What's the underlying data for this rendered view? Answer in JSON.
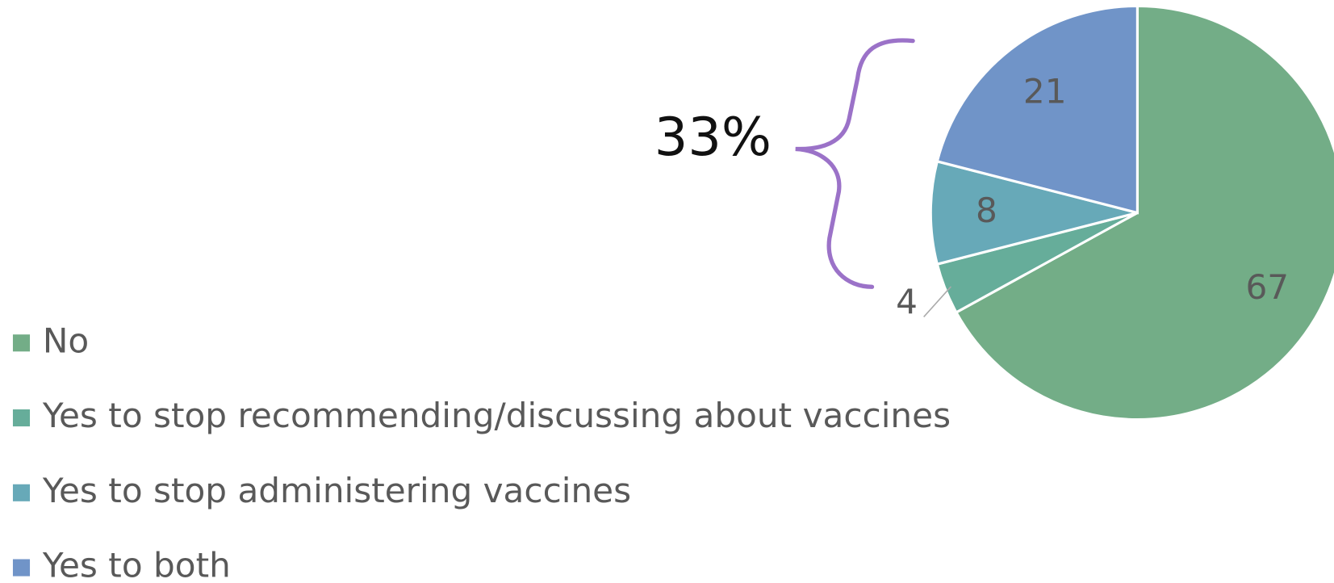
{
  "chart_data": {
    "type": "pie",
    "categories": [
      "No",
      "Yes to stop recommending/discussing about vaccines",
      "Yes to stop administering vaccines",
      "Yes to both"
    ],
    "values": [
      67,
      4,
      8,
      21
    ],
    "colors": [
      "#73ad87",
      "#66ad9a",
      "#67a9b8",
      "#7094c8"
    ],
    "annotation": "33%",
    "legend": "left"
  }
}
